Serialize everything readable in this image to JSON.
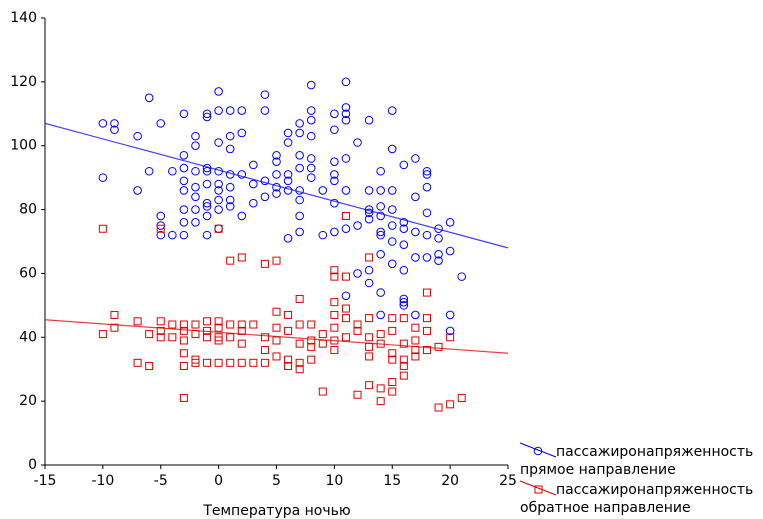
{
  "chart_data": {
    "type": "scatter",
    "x_label": "Температура ночью",
    "xlim": [
      -15,
      25
    ],
    "xticks": [
      -15,
      -10,
      -5,
      0,
      5,
      10,
      15,
      20,
      25
    ],
    "ylim": [
      0,
      140
    ],
    "yticks": [
      0,
      20,
      40,
      60,
      80,
      100,
      120,
      140
    ],
    "series": [
      {
        "name": "пассажиронапряженность прямое направление",
        "color": "#0000ff",
        "marker": "circle",
        "fit": {
          "x": [
            -15,
            25
          ],
          "values": [
            107,
            68
          ]
        },
        "x": [
          -10,
          -10,
          -9,
          -9,
          -7,
          -7,
          -6,
          -6,
          -5,
          -5,
          -5,
          -5,
          -4,
          -4,
          -3,
          -3,
          -3,
          -3,
          -3,
          -3,
          -3,
          -3,
          -2,
          -2,
          -2,
          -2,
          -2,
          -2,
          -2,
          -1,
          -1,
          -1,
          -1,
          -1,
          -1,
          -1,
          -1,
          -1,
          0,
          0,
          0,
          0,
          0,
          0,
          0,
          0,
          0,
          1,
          1,
          1,
          1,
          1,
          1,
          1,
          2,
          2,
          2,
          2,
          3,
          3,
          3,
          4,
          4,
          4,
          4,
          5,
          5,
          5,
          5,
          5,
          6,
          6,
          6,
          6,
          6,
          6,
          7,
          7,
          7,
          7,
          7,
          7,
          7,
          7,
          8,
          8,
          8,
          8,
          8,
          8,
          8,
          9,
          9,
          10,
          10,
          10,
          10,
          10,
          10,
          10,
          11,
          11,
          11,
          11,
          11,
          11,
          11,
          11,
          12,
          12,
          12,
          13,
          13,
          13,
          13,
          13,
          13,
          13,
          14,
          14,
          14,
          14,
          14,
          14,
          14,
          14,
          14,
          15,
          15,
          15,
          15,
          15,
          15,
          15,
          16,
          16,
          16,
          16,
          16,
          16,
          16,
          16,
          17,
          17,
          17,
          17,
          17,
          18,
          18,
          18,
          18,
          18,
          18,
          19,
          19,
          19,
          19,
          20,
          20,
          20,
          20,
          21
        ],
        "values": [
          107,
          90,
          107,
          105,
          103,
          86,
          115,
          92,
          107,
          78,
          75,
          72,
          72,
          92,
          110,
          97,
          93,
          89,
          86,
          80,
          76,
          72,
          103,
          100,
          92,
          87,
          84,
          80,
          76,
          110,
          109,
          93,
          92,
          88,
          82,
          81,
          78,
          72,
          117,
          111,
          101,
          92,
          88,
          86,
          83,
          80,
          74,
          111,
          103,
          99,
          91,
          87,
          83,
          81,
          111,
          104,
          91,
          78,
          94,
          88,
          82,
          111,
          116,
          89,
          84,
          97,
          95,
          91,
          87,
          85,
          104,
          101,
          91,
          89,
          86,
          71,
          107,
          104,
          97,
          93,
          86,
          83,
          78,
          73,
          119,
          111,
          108,
          103,
          96,
          93,
          90,
          86,
          72,
          110,
          105,
          95,
          91,
          89,
          82,
          73,
          120,
          112,
          110,
          108,
          96,
          86,
          74,
          53,
          101,
          75,
          60,
          108,
          86,
          80,
          79,
          77,
          61,
          57,
          92,
          86,
          81,
          78,
          73,
          72,
          66,
          54,
          47,
          111,
          99,
          86,
          80,
          75,
          70,
          63,
          94,
          76,
          74,
          69,
          61,
          52,
          51,
          50,
          96,
          84,
          73,
          65,
          47,
          92,
          91,
          87,
          79,
          72,
          65,
          74,
          71,
          64,
          66,
          76,
          67,
          47,
          42,
          59
        ]
      },
      {
        "name": "пассажиронапряженность обратное направление",
        "color": "#e00000",
        "marker": "square",
        "fit": {
          "x": [
            -15,
            25
          ],
          "values": [
            45.5,
            35
          ]
        },
        "x": [
          -10,
          -10,
          -9,
          -9,
          -7,
          -7,
          -6,
          -6,
          -5,
          -5,
          -5,
          -5,
          -4,
          -4,
          -3,
          -3,
          -3,
          -3,
          -3,
          -3,
          -2,
          -2,
          -2,
          -2,
          -1,
          -1,
          -1,
          -1,
          0,
          0,
          0,
          0,
          0,
          0,
          1,
          1,
          1,
          1,
          2,
          2,
          2,
          2,
          2,
          3,
          3,
          4,
          4,
          4,
          4,
          5,
          5,
          5,
          5,
          5,
          6,
          6,
          6,
          6,
          7,
          7,
          7,
          7,
          7,
          8,
          8,
          8,
          8,
          9,
          9,
          9,
          10,
          10,
          10,
          10,
          10,
          10,
          10,
          11,
          11,
          11,
          11,
          11,
          12,
          12,
          12,
          13,
          13,
          13,
          13,
          13,
          13,
          14,
          14,
          14,
          14,
          15,
          15,
          15,
          15,
          15,
          15,
          16,
          16,
          16,
          16,
          16,
          17,
          17,
          17,
          17,
          18,
          18,
          18,
          18,
          19,
          19,
          20,
          20,
          21
        ],
        "values": [
          74,
          41,
          47,
          43,
          45,
          32,
          41,
          31,
          74,
          45,
          42,
          40,
          40,
          44,
          44,
          42,
          39,
          35,
          31,
          21,
          44,
          41,
          33,
          32,
          45,
          42,
          40,
          32,
          74,
          45,
          43,
          40,
          39,
          32,
          64,
          44,
          40,
          32,
          65,
          44,
          42,
          38,
          32,
          44,
          32,
          63,
          40,
          36,
          32,
          64,
          48,
          43,
          39,
          34,
          47,
          42,
          33,
          31,
          52,
          44,
          38,
          32,
          30,
          44,
          39,
          37,
          33,
          41,
          38,
          23,
          61,
          59,
          51,
          47,
          43,
          39,
          36,
          78,
          59,
          49,
          46,
          40,
          44,
          42,
          22,
          65,
          46,
          40,
          37,
          34,
          25,
          41,
          38,
          24,
          20,
          46,
          42,
          35,
          33,
          26,
          23,
          46,
          38,
          33,
          31,
          28,
          43,
          39,
          36,
          34,
          54,
          46,
          42,
          36,
          37,
          18,
          40,
          19,
          21
        ]
      }
    ]
  }
}
